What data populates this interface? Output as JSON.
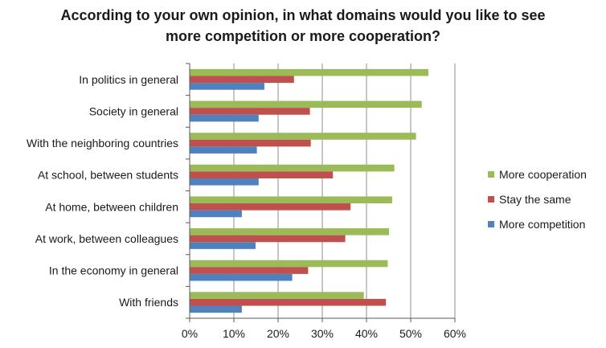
{
  "chart_data": {
    "type": "bar",
    "orientation": "horizontal",
    "title_lines": [
      "According to your own opinion, in what domains would you like to see",
      "more competition or more cooperation?"
    ],
    "categories": [
      "In politics in general",
      "Society in general",
      "With the neighboring countries",
      "At school, between students",
      "At home, between children",
      "At work, between colleagues",
      "In the economy in general",
      "With friends"
    ],
    "series": [
      {
        "name": "More cooperation",
        "color": "#9BBB59",
        "values": [
          54,
          52.5,
          51.2,
          46.3,
          45.8,
          45.1,
          44.8,
          39.4
        ]
      },
      {
        "name": "Stay the same",
        "color": "#C0504D",
        "values": [
          23.6,
          27.2,
          27.4,
          32.4,
          36.4,
          35.2,
          26.8,
          44.4
        ]
      },
      {
        "name": "More competition",
        "color": "#4F81BD",
        "values": [
          16.9,
          15.6,
          15.2,
          15.6,
          11.8,
          14.9,
          23.2,
          11.8
        ]
      }
    ],
    "xlim": [
      0,
      60
    ],
    "xticks": [
      "0%",
      "10%",
      "20%",
      "30%",
      "40%",
      "50%",
      "60%"
    ],
    "grid": "vertical",
    "legend": "right"
  }
}
